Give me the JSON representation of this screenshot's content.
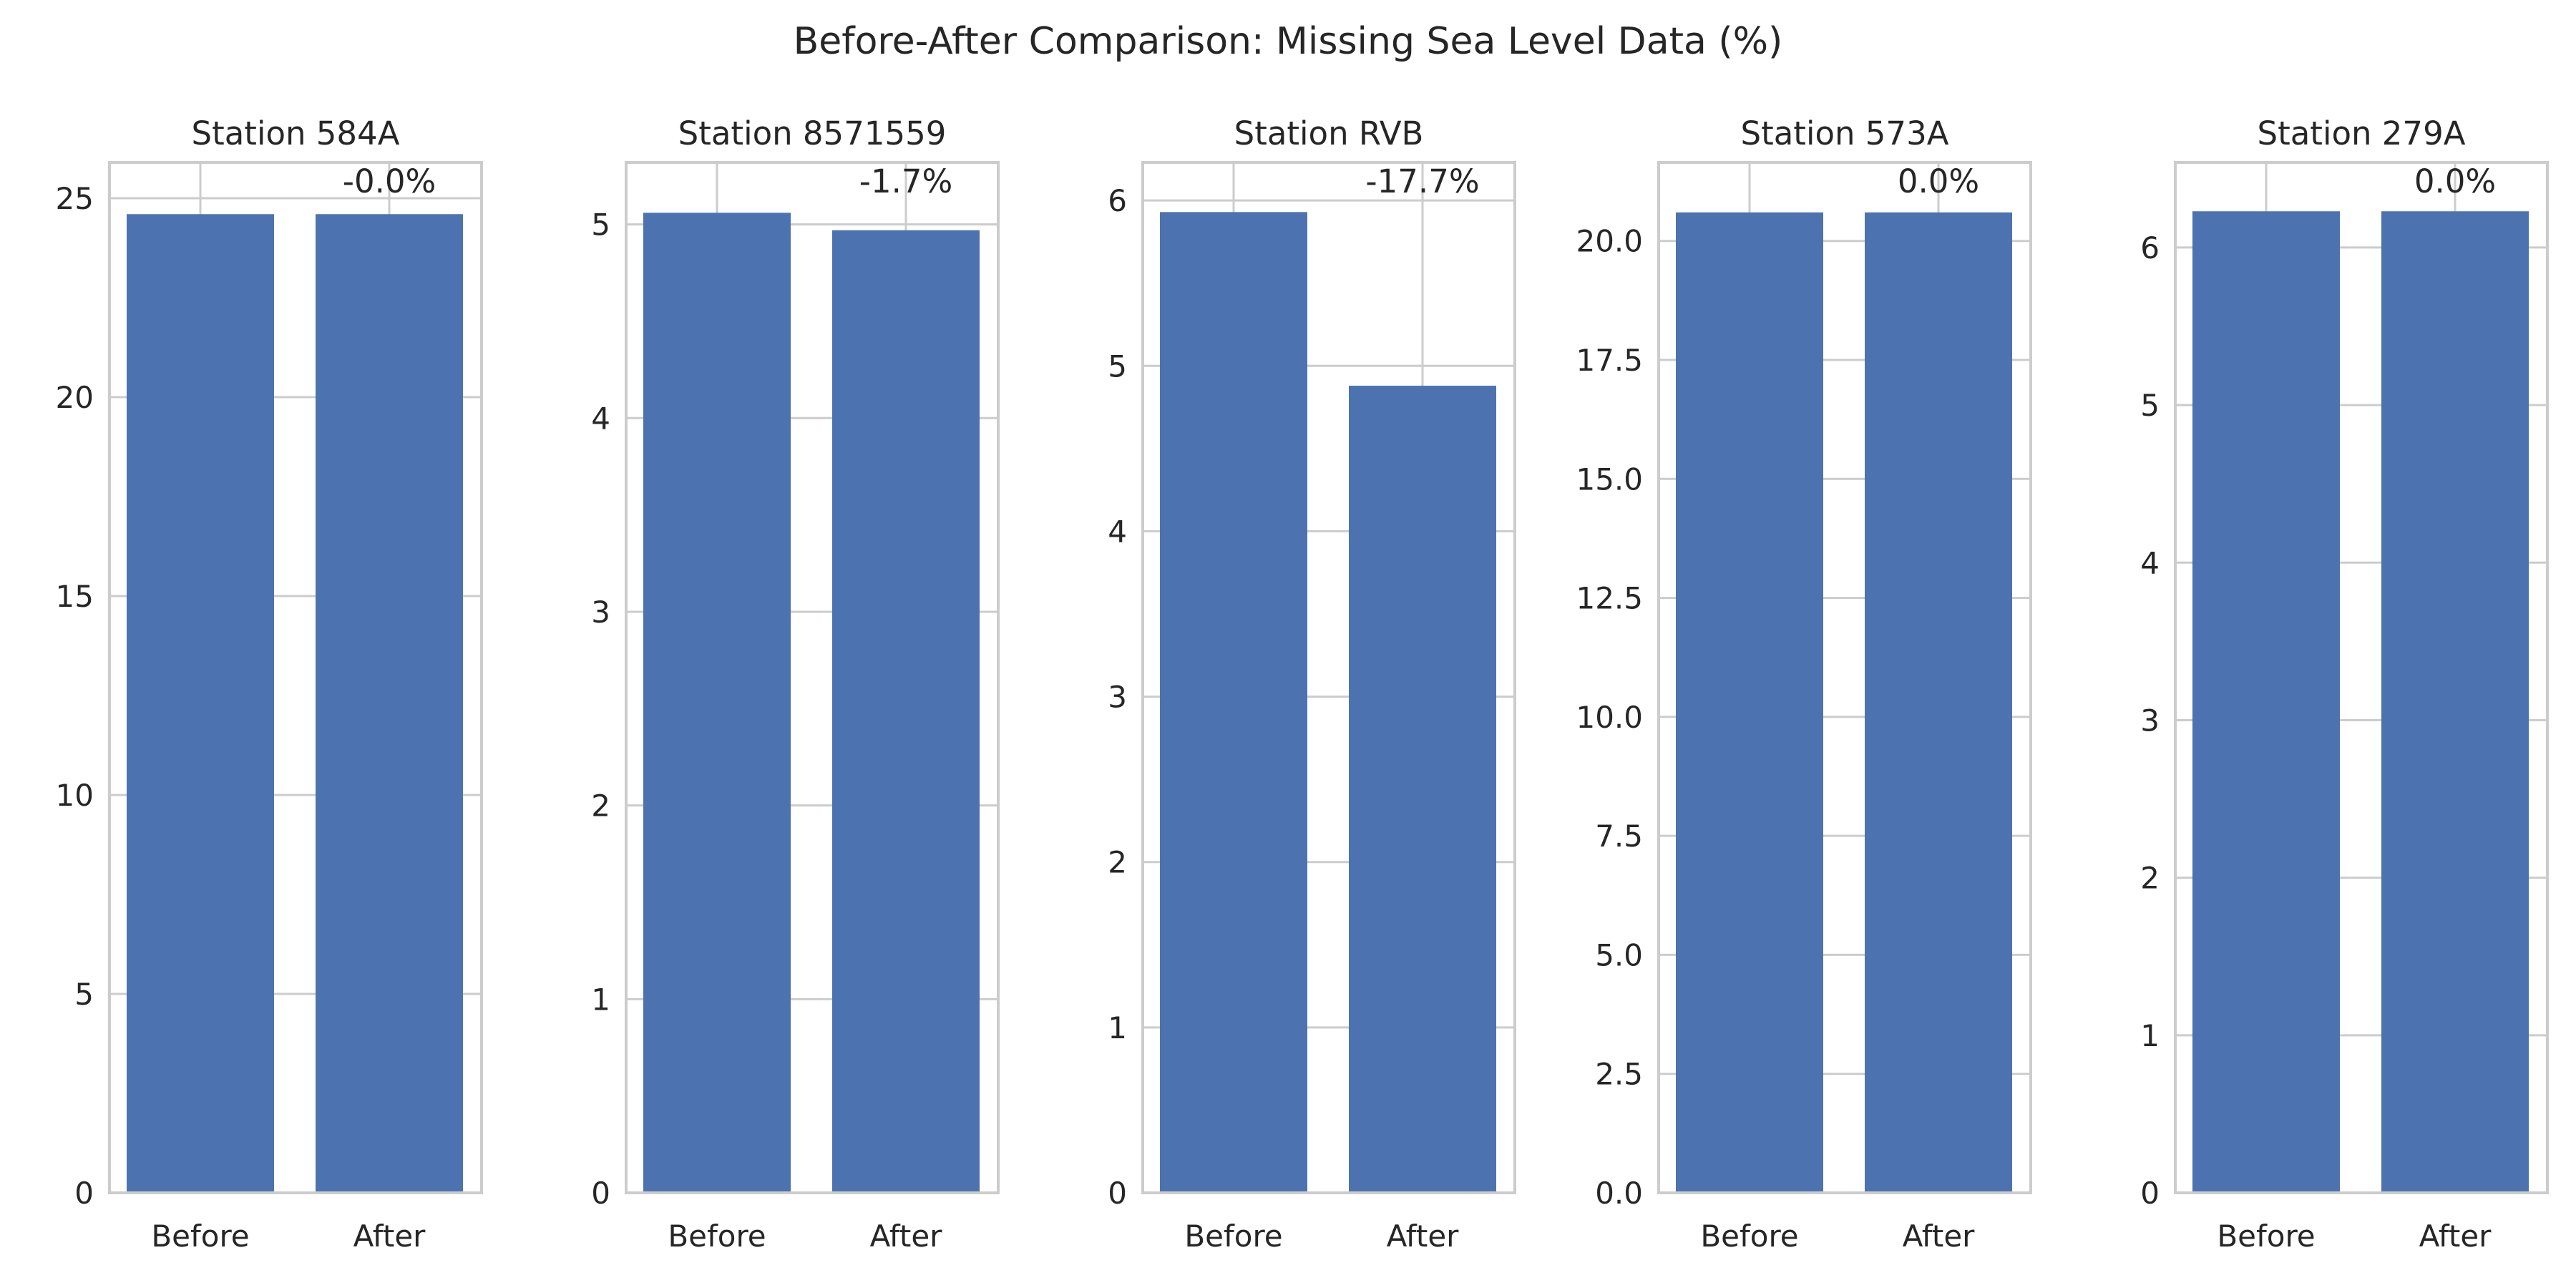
{
  "title": "Before-After Comparison: Missing Sea Level Data (%)",
  "colors": {
    "bar": "#4c72b0",
    "grid": "#cccccc",
    "text": "#262626",
    "background": "#ffffff"
  },
  "chart_data": [
    {
      "type": "bar",
      "title": "Station 584A",
      "categories": [
        "Before",
        "After"
      ],
      "values": [
        24.6,
        24.6
      ],
      "annotation": "-0.0%",
      "ylim": [
        0,
        25.9
      ],
      "yticks": [
        0,
        5,
        10,
        15,
        20,
        25
      ],
      "ytick_labels": [
        "0",
        "5",
        "10",
        "15",
        "20",
        "25"
      ],
      "grid": true
    },
    {
      "type": "bar",
      "title": "Station 8571559",
      "categories": [
        "Before",
        "After"
      ],
      "values": [
        5.06,
        4.97
      ],
      "annotation": "-1.7%",
      "ylim": [
        0,
        5.32
      ],
      "yticks": [
        0,
        1,
        2,
        3,
        4,
        5
      ],
      "ytick_labels": [
        "0",
        "1",
        "2",
        "3",
        "4",
        "5"
      ],
      "grid": true
    },
    {
      "type": "bar",
      "title": "Station RVB",
      "categories": [
        "Before",
        "After"
      ],
      "values": [
        5.93,
        4.88
      ],
      "annotation": "-17.7%",
      "ylim": [
        0,
        6.23
      ],
      "yticks": [
        0,
        1,
        2,
        3,
        4,
        5,
        6
      ],
      "ytick_labels": [
        "0",
        "1",
        "2",
        "3",
        "4",
        "5",
        "6"
      ],
      "grid": true
    },
    {
      "type": "bar",
      "title": "Station 573A",
      "categories": [
        "Before",
        "After"
      ],
      "values": [
        20.6,
        20.6
      ],
      "annotation": "0.0%",
      "ylim": [
        0,
        21.65
      ],
      "yticks": [
        0,
        2.5,
        5,
        7.5,
        10,
        12.5,
        15,
        17.5,
        20
      ],
      "ytick_labels": [
        "0.0",
        "2.5",
        "5.0",
        "7.5",
        "10.0",
        "12.5",
        "15.0",
        "17.5",
        "20.0"
      ],
      "grid": true
    },
    {
      "type": "bar",
      "title": "Station 279A",
      "categories": [
        "Before",
        "After"
      ],
      "values": [
        6.23,
        6.23
      ],
      "annotation": "0.0%",
      "ylim": [
        0,
        6.54
      ],
      "yticks": [
        0,
        1,
        2,
        3,
        4,
        5,
        6
      ],
      "ytick_labels": [
        "0",
        "1",
        "2",
        "3",
        "4",
        "5",
        "6"
      ],
      "grid": true
    }
  ]
}
